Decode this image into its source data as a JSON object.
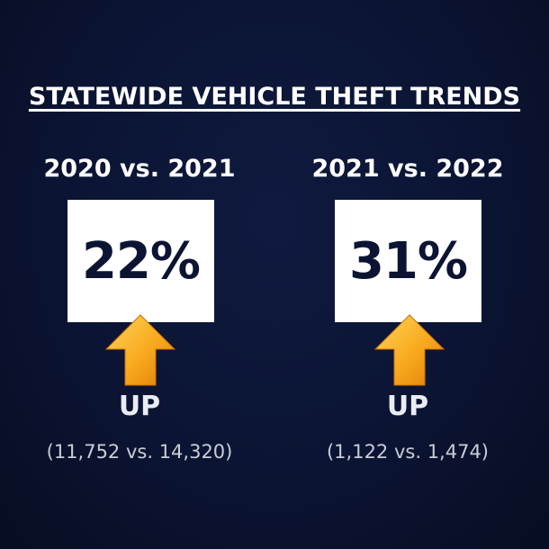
{
  "title": "STATEWIDE VEHICLE THEFT TRENDS",
  "panels": [
    {
      "period": "2020 vs. 2021",
      "percent": "22%",
      "direction_icon": "up-arrow-icon",
      "direction_label": "UP",
      "counts": "(11,752 vs. 14,320)"
    },
    {
      "period": "2021 vs. 2022",
      "percent": "31%",
      "direction_icon": "up-arrow-icon",
      "direction_label": "UP",
      "counts": "(1,122 vs. 1,474)"
    }
  ],
  "colors": {
    "background": "#0b1433",
    "box": "#ffffff",
    "percent_text": "#0b1433",
    "arrow_light": "#ffc83a",
    "arrow_dark": "#e98a0c"
  }
}
